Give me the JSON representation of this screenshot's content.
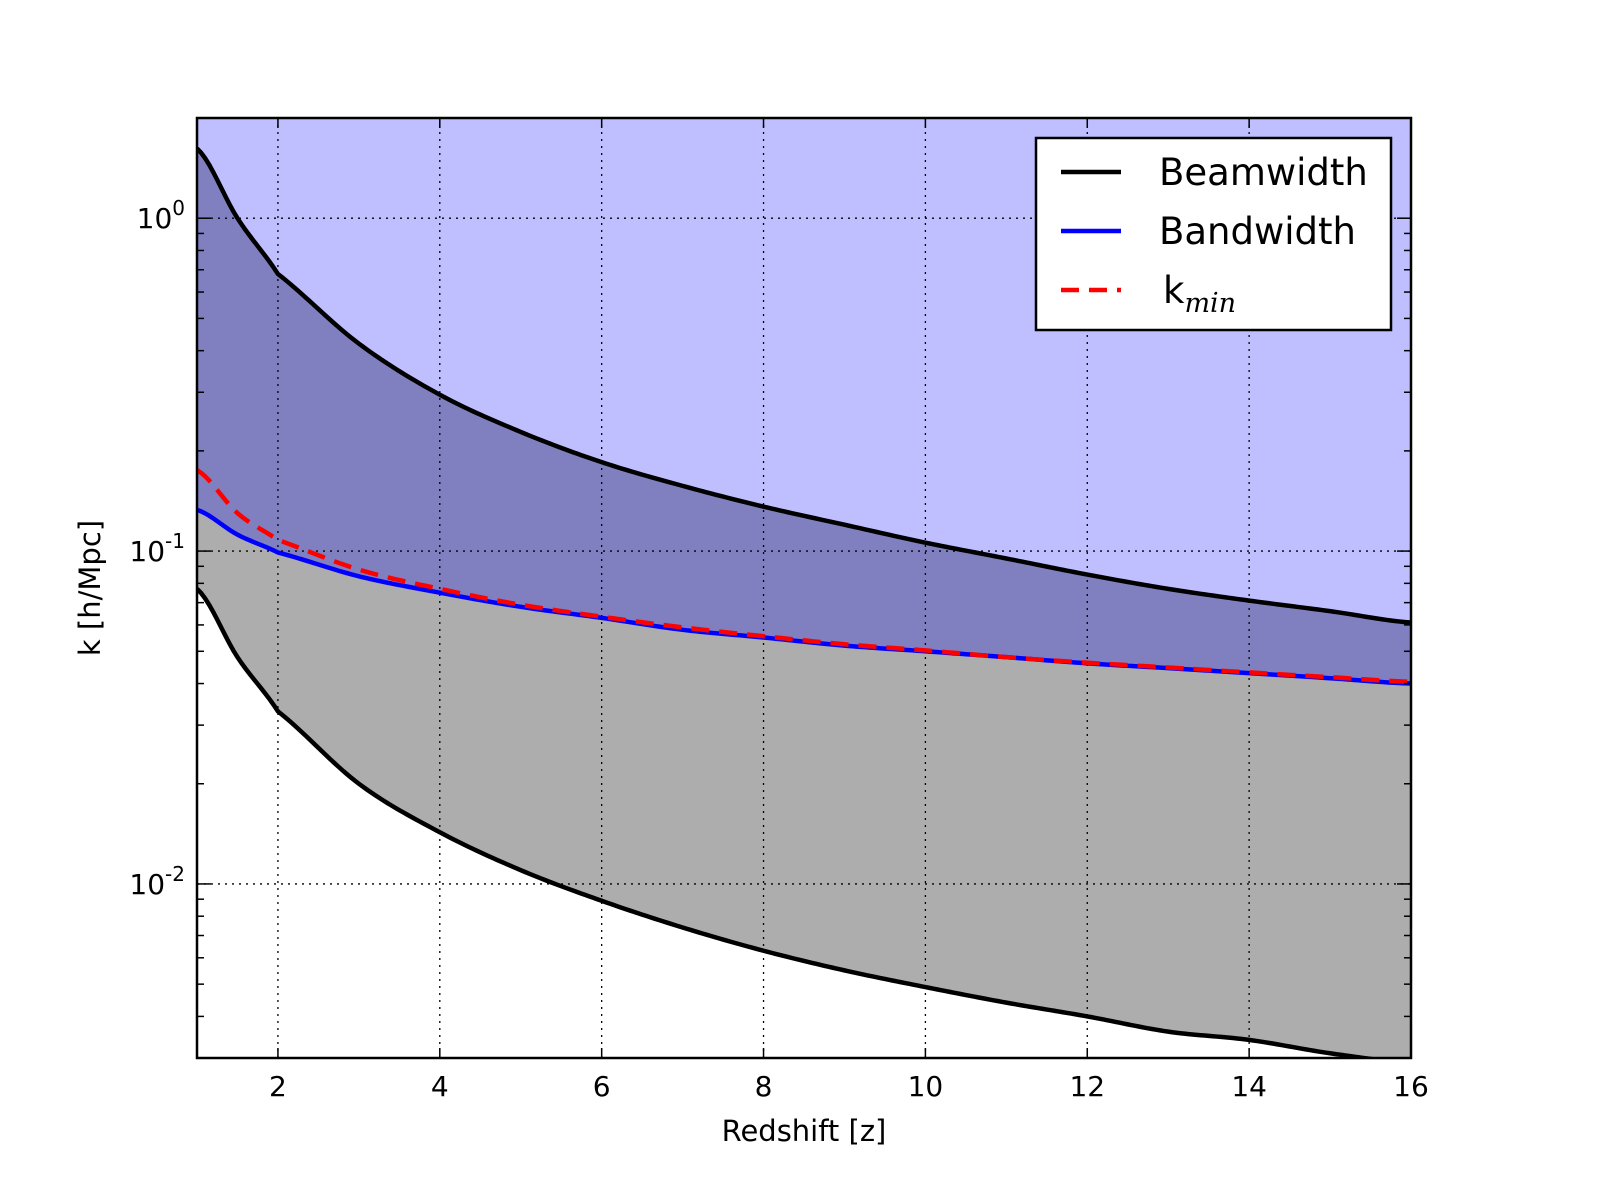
{
  "chart_data": {
    "type": "line",
    "title": "",
    "xlabel": "Redshift [z]",
    "ylabel": "k [h/Mpc]",
    "xlim": [
      1,
      16
    ],
    "ylim": [
      0.003,
      2.0
    ],
    "yscale": "log",
    "grid": true,
    "legend_position": "top-right",
    "x_ticks": [
      2,
      4,
      6,
      8,
      10,
      12,
      14,
      16
    ],
    "y_ticks": [
      {
        "value": 1,
        "base": "10",
        "exp": "0"
      },
      {
        "value": 0.1,
        "base": "10",
        "exp": "-1"
      },
      {
        "value": 0.01,
        "base": "10",
        "exp": "-2"
      }
    ],
    "x": [
      1,
      1.5,
      2,
      3,
      4,
      5,
      6,
      7,
      8,
      9,
      10,
      11,
      12,
      13,
      14,
      15,
      16
    ],
    "series": [
      {
        "name": "Beamwidth",
        "color": "#000000",
        "style": "solid",
        "values": [
          1.62,
          1.0,
          0.68,
          0.42,
          0.295,
          0.228,
          0.185,
          0.157,
          0.136,
          0.12,
          0.106,
          0.095,
          0.085,
          0.077,
          0.071,
          0.066,
          0.061
        ]
      },
      {
        "name": "",
        "color": "#000000",
        "style": "solid",
        "values": [
          0.077,
          0.048,
          0.033,
          0.02,
          0.0143,
          0.011,
          0.0089,
          0.0074,
          0.0063,
          0.0055,
          0.0049,
          0.0044,
          0.004,
          0.0036,
          0.0034,
          0.0031,
          0.0029
        ]
      },
      {
        "name": "Bandwidth",
        "color": "#0000ff",
        "style": "solid",
        "values": [
          0.133,
          0.112,
          0.099,
          0.084,
          0.075,
          0.068,
          0.063,
          0.058,
          0.055,
          0.052,
          0.05,
          0.048,
          0.046,
          0.0445,
          0.043,
          0.0415,
          0.04
        ]
      },
      {
        "name": "k_min",
        "label_base": "k",
        "label_sub": "min",
        "color": "#ff0000",
        "style": "dashed",
        "values": [
          0.175,
          0.13,
          0.108,
          0.088,
          0.077,
          0.069,
          0.0635,
          0.059,
          0.0555,
          0.0525,
          0.0503,
          0.048,
          0.0462,
          0.0447,
          0.0432,
          0.0418,
          0.0405
        ]
      }
    ],
    "fills": [
      {
        "region": "above-lower-beamwidth",
        "color": "#adadad"
      },
      {
        "region": "above-bandwidth",
        "color": "#8080c0"
      },
      {
        "region": "above-upper-beamwidth",
        "color": "#bfbfff"
      }
    ]
  }
}
